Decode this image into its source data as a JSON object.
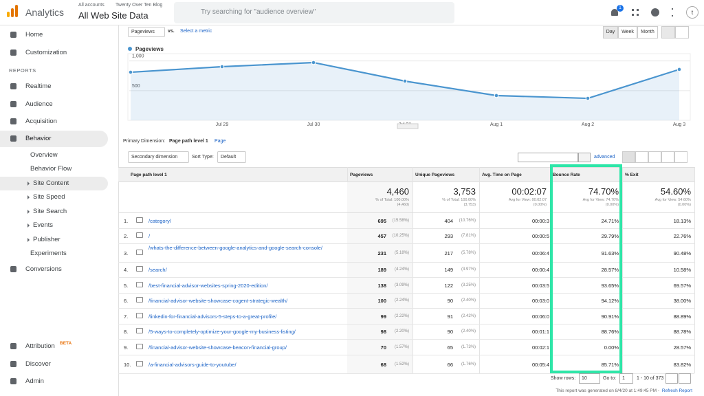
{
  "header": {
    "app_name": "Analytics",
    "account_path": [
      "All accounts",
      "Twenty Over Ten Blog"
    ],
    "property": "All Web Site Data",
    "search_placeholder": "Try searching for \"audience overview\"",
    "notifications": "1",
    "avatar": "t"
  },
  "sidebar": {
    "top": [
      "Home",
      "Customization"
    ],
    "section_label": "REPORTS",
    "reports": [
      "Realtime",
      "Audience",
      "Acquisition",
      "Behavior"
    ],
    "behavior_children": [
      "Overview",
      "Behavior Flow",
      "Site Content",
      "Site Speed",
      "Site Search",
      "Events",
      "Publisher",
      "Experiments"
    ],
    "after": [
      "Conversions"
    ],
    "bottom": [
      {
        "label": "Attribution",
        "badge": "BETA"
      },
      {
        "label": "Discover"
      },
      {
        "label": "Admin"
      }
    ]
  },
  "chart_controls": {
    "metric": "Pageviews",
    "vs": "vs.",
    "select_metric": "Select a metric",
    "periods": [
      "Day",
      "Week",
      "Month"
    ]
  },
  "chart": {
    "type": "line",
    "categories": [
      null,
      "Jul 29",
      "Jul 30",
      "Jul 31",
      "Aug 1",
      "Aug 2",
      "Aug 3"
    ],
    "series": [
      {
        "name": "Pageviews",
        "color": "#4a95cf",
        "values": [
          810,
          903,
          973,
          660,
          417,
          370,
          857
        ]
      }
    ],
    "ylim": [
      0,
      1100
    ],
    "yticks": [
      {
        "value": 1000,
        "label": "1,000"
      },
      500
    ],
    "grid": true,
    "area": true
  },
  "table": {
    "primary_dimension_label": "Primary Dimension:",
    "primary_dimension": "Page path level 1",
    "alt_dimension": "Page",
    "secondary_dimension": "Secondary dimension",
    "sort_type_label": "Sort Type:",
    "sort_type": "Default",
    "advanced": "advanced",
    "columns": [
      "Page path level 1",
      "Pageviews",
      "Unique Pageviews",
      "Avg. Time on Page",
      "Bounce Rate",
      "% Exit"
    ],
    "totals": [
      {
        "value": "4,460",
        "note": "% of Total: 100.00%",
        "note2": "(4,460)"
      },
      {
        "value": "3,753",
        "note": "% of Total: 100.00%",
        "note2": "(3,753)"
      },
      {
        "value": "00:02:07",
        "note": "Avg for View: 00:02:07",
        "note2": "(0.00%)"
      },
      {
        "value": "74.70%",
        "note": "Avg for View: 74.70%",
        "note2": "(0.00%)"
      },
      {
        "value": "54.60%",
        "note": "Avg for View: 54.60%",
        "note2": "(0.00%)"
      }
    ],
    "rows": [
      {
        "index": "1.",
        "path": "/category/",
        "pageviews": 695,
        "pageviews_pct": "(15.58%)",
        "unique": 404,
        "unique_pct": "(10.76%)",
        "avg_time": "00:00:3",
        "bounce_rate": "24.71%",
        "exit": "18.13%"
      },
      {
        "index": "2.",
        "path": "/",
        "pageviews": 457,
        "pageviews_pct": "(10.25%)",
        "unique": 293,
        "unique_pct": "(7.81%)",
        "avg_time": "00:00:5",
        "bounce_rate": "29.79%",
        "exit": "22.76%"
      },
      {
        "index": "3.",
        "path": "/whats-the-difference-between-google-analytics-and-google-search-console/",
        "pageviews": 231,
        "pageviews_pct": "(5.18%)",
        "unique": 217,
        "unique_pct": "(5.78%)",
        "avg_time": "00:06:4",
        "bounce_rate": "91.63%",
        "exit": "90.48%"
      },
      {
        "index": "4.",
        "path": "/search/",
        "pageviews": 189,
        "pageviews_pct": "(4.24%)",
        "unique": 149,
        "unique_pct": "(3.97%)",
        "avg_time": "00:00:4",
        "bounce_rate": "28.57%",
        "exit": "10.58%"
      },
      {
        "index": "5.",
        "path": "/best-financial-advisor-websites-spring-2020-edition/",
        "pageviews": 138,
        "pageviews_pct": "(3.09%)",
        "unique": 122,
        "unique_pct": "(3.25%)",
        "avg_time": "00:03:5",
        "bounce_rate": "93.65%",
        "exit": "69.57%"
      },
      {
        "index": "6.",
        "path": "/financial-advisor-website-showcase-cogent-strategic-wealth/",
        "pageviews": 100,
        "pageviews_pct": "(2.24%)",
        "unique": 90,
        "unique_pct": "(2.40%)",
        "avg_time": "00:03:0",
        "bounce_rate": "94.12%",
        "exit": "38.00%"
      },
      {
        "index": "7.",
        "path": "/linkedin-for-financial-advisors-5-steps-to-a-great-profile/",
        "pageviews": 99,
        "pageviews_pct": "(2.22%)",
        "unique": 91,
        "unique_pct": "(2.42%)",
        "avg_time": "00:06:0",
        "bounce_rate": "90.91%",
        "exit": "88.89%"
      },
      {
        "index": "8.",
        "path": "/5-ways-to-completely-optimize-your-google-my-business-listing/",
        "pageviews": 98,
        "pageviews_pct": "(2.20%)",
        "unique": 90,
        "unique_pct": "(2.40%)",
        "avg_time": "00:01:1",
        "bounce_rate": "88.76%",
        "exit": "88.78%"
      },
      {
        "index": "9.",
        "path": "/financial-advisor-website-showcase-beacon-financial-group/",
        "pageviews": 70,
        "pageviews_pct": "(1.57%)",
        "unique": 65,
        "unique_pct": "(1.73%)",
        "avg_time": "00:02:1",
        "bounce_rate": "0.00%",
        "exit": "28.57%"
      },
      {
        "index": "10.",
        "path": "/a-financial-advisors-guide-to-youtube/",
        "pageviews": 68,
        "pageviews_pct": "(1.52%)",
        "unique": 66,
        "unique_pct": "(1.76%)",
        "avg_time": "00:05:4",
        "bounce_rate": "85.71%",
        "exit": "83.82%"
      }
    ],
    "show_rows_label": "Show rows:",
    "show_rows": "10",
    "goto_label": "Go to:",
    "goto": "1",
    "range": "1 - 10 of 373"
  },
  "footer": {
    "generated": "This report was generated on 8/4/20 at 1:49:45 PM - ",
    "refresh": "Refresh Report"
  }
}
